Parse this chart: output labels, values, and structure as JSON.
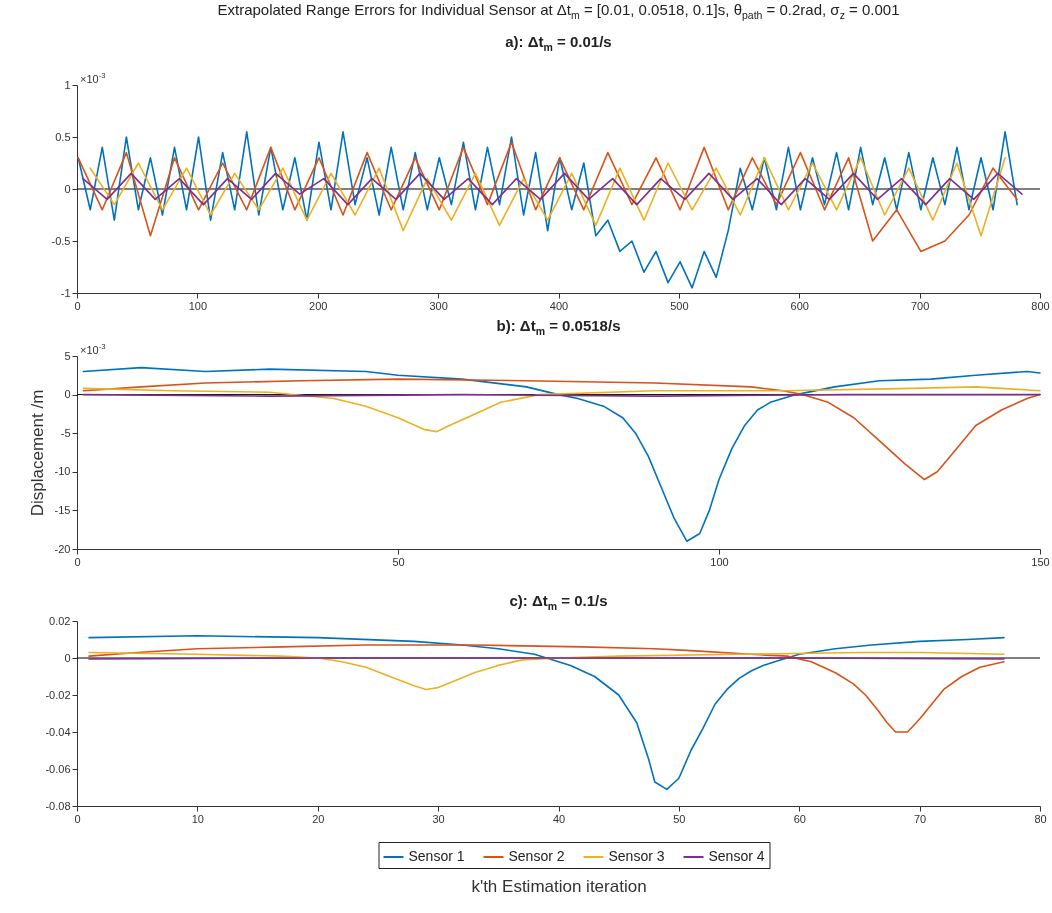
{
  "chart_data": [
    {
      "type": "line",
      "title": "Extrapolated Range Errors for Individual Sensor at Δt$_{m}$ = [0.01, 0.0518, 0.1]s, θ$_{path}$ = 0.2rad, σ$_{z}$ = 0.001",
      "subtitle": "a): Δt$_{m}$ = 0.01/s",
      "annotations": [
        "×10$^{-3}$"
      ],
      "xlim": [
        0,
        800
      ],
      "xticks": [
        0,
        100,
        200,
        300,
        400,
        500,
        600,
        700,
        800
      ],
      "ylim": [
        -1,
        1
      ],
      "yticks": [
        -1,
        -0.5,
        0,
        0.5,
        1
      ],
      "grid": false,
      "legend": false,
      "line_style": "solid",
      "ref_lines": [
        {
          "axis": "y",
          "value": 0,
          "color": "#000000"
        }
      ],
      "series": [
        {
          "color": "#0072bd",
          "x": [
            1,
            11,
            21,
            31,
            41,
            51,
            61,
            71,
            81,
            91,
            101,
            111,
            121,
            131,
            141,
            151,
            161,
            171,
            181,
            191,
            201,
            211,
            221,
            231,
            241,
            251,
            261,
            271,
            281,
            291,
            301,
            311,
            321,
            331,
            341,
            351,
            361,
            371,
            381,
            391,
            401,
            411,
            421,
            431,
            441,
            451,
            461,
            471,
            481,
            491,
            501,
            511,
            521,
            531,
            541,
            551,
            561,
            571,
            581,
            591,
            601,
            611,
            621,
            631,
            641,
            651,
            661,
            671,
            681,
            691,
            701,
            711,
            721,
            731,
            741,
            751,
            761,
            771,
            781
          ],
          "values": [
            0.3,
            -0.2,
            0.4,
            -0.3,
            0.5,
            -0.2,
            0.3,
            -0.25,
            0.4,
            -0.2,
            0.5,
            -0.3,
            0.35,
            -0.2,
            0.55,
            -0.25,
            0.4,
            -0.2,
            0.3,
            -0.3,
            0.45,
            -0.2,
            0.55,
            -0.15,
            0.3,
            -0.25,
            0.4,
            -0.2,
            0.35,
            -0.2,
            0.3,
            -0.15,
            0.45,
            -0.2,
            0.4,
            -0.15,
            0.5,
            -0.25,
            0.35,
            -0.4,
            0.3,
            -0.2,
            0.25,
            -0.45,
            -0.3,
            -0.6,
            -0.5,
            -0.8,
            -0.6,
            -0.9,
            -0.7,
            -0.95,
            -0.6,
            -0.85,
            -0.4,
            0.2,
            -0.2,
            0.3,
            -0.2,
            0.4,
            -0.2,
            0.3,
            -0.15,
            0.35,
            -0.2,
            0.4,
            -0.15,
            0.3,
            -0.2,
            0.35,
            -0.2,
            0.3,
            -0.15,
            0.4,
            -0.2,
            0.3,
            -0.2,
            0.55,
            -0.15
          ]
        },
        {
          "color": "#d95319",
          "x": [
            1,
            21,
            41,
            61,
            81,
            101,
            121,
            141,
            161,
            181,
            201,
            221,
            241,
            261,
            281,
            301,
            321,
            341,
            361,
            381,
            401,
            421,
            441,
            461,
            481,
            501,
            521,
            541,
            561,
            581,
            601,
            621,
            641,
            661,
            681,
            701,
            721,
            741,
            761,
            781
          ],
          "values": [
            0.3,
            -0.2,
            0.35,
            -0.45,
            0.3,
            -0.2,
            0.25,
            -0.2,
            0.4,
            -0.2,
            0.3,
            -0.25,
            0.35,
            -0.2,
            0.3,
            -0.2,
            0.4,
            -0.15,
            0.45,
            -0.2,
            0.3,
            -0.2,
            0.35,
            -0.15,
            0.3,
            -0.2,
            0.4,
            -0.2,
            0.3,
            -0.15,
            0.35,
            -0.2,
            0.3,
            -0.5,
            -0.2,
            -0.6,
            -0.5,
            -0.25,
            0.2,
            -0.1
          ]
        },
        {
          "color": "#edb120",
          "x": [
            11,
            31,
            51,
            71,
            91,
            111,
            131,
            151,
            171,
            191,
            211,
            231,
            251,
            271,
            291,
            311,
            331,
            351,
            371,
            391,
            411,
            431,
            451,
            471,
            491,
            511,
            531,
            551,
            571,
            591,
            611,
            631,
            651,
            671,
            691,
            711,
            731,
            751,
            771
          ],
          "values": [
            0.2,
            -0.15,
            0.25,
            -0.2,
            0.2,
            -0.25,
            0.15,
            -0.2,
            0.2,
            -0.3,
            0.15,
            -0.25,
            0.2,
            -0.4,
            0.1,
            -0.3,
            0.15,
            -0.35,
            0.1,
            -0.3,
            0.15,
            -0.35,
            0.2,
            -0.3,
            0.25,
            -0.2,
            0.2,
            -0.25,
            0.3,
            -0.2,
            0.25,
            -0.2,
            0.3,
            -0.25,
            0.2,
            -0.3,
            0.25,
            -0.45,
            0.3
          ]
        },
        {
          "color": "#7e2f8e",
          "x": [
            5,
            25,
            45,
            65,
            85,
            105,
            125,
            145,
            165,
            185,
            205,
            225,
            245,
            265,
            285,
            305,
            325,
            345,
            365,
            385,
            405,
            425,
            445,
            465,
            485,
            505,
            525,
            545,
            565,
            585,
            605,
            625,
            645,
            665,
            685,
            705,
            725,
            745,
            765,
            785
          ],
          "values": [
            0.1,
            -0.1,
            0.15,
            -0.1,
            0.1,
            -0.15,
            0.1,
            -0.1,
            0.15,
            -0.05,
            0.1,
            -0.15,
            0.1,
            -0.1,
            0.15,
            -0.1,
            0.1,
            -0.15,
            0.1,
            -0.1,
            0.15,
            -0.1,
            0.1,
            -0.15,
            0.1,
            -0.1,
            0.15,
            -0.1,
            0.1,
            -0.15,
            0.1,
            -0.1,
            0.15,
            -0.1,
            0.1,
            -0.15,
            0.1,
            -0.1,
            0.15,
            -0.05
          ]
        }
      ]
    },
    {
      "type": "line",
      "title": "b): Δt$_{m}$ = 0.0518/s",
      "ylabel": "Displacement /m",
      "annotations": [
        "×10$^{-3}$"
      ],
      "xlim": [
        0,
        150
      ],
      "xticks": [
        0,
        50,
        100,
        150
      ],
      "ylim": [
        -20,
        5
      ],
      "yticks": [
        -20,
        -15,
        -10,
        -5,
        0,
        5
      ],
      "grid": false,
      "legend": false,
      "line_style": "solid",
      "ref_lines": [
        {
          "axis": "y",
          "value": 0,
          "color": "#000000"
        }
      ],
      "series": [
        {
          "color": "#0072bd",
          "x": [
            1,
            10,
            20,
            30,
            45,
            50,
            60,
            70,
            75,
            78,
            82,
            85,
            87,
            89,
            91,
            93,
            95,
            97,
            98.5,
            100,
            102,
            104,
            106,
            108,
            112,
            118,
            125,
            133,
            140,
            148,
            150
          ],
          "values": [
            3,
            3.5,
            3,
            3.3,
            3,
            2.5,
            2,
            1,
            0,
            -0.5,
            -1.5,
            -3,
            -5,
            -8,
            -12,
            -16,
            -19,
            -18,
            -15,
            -11,
            -7,
            -4,
            -2,
            -1,
            0,
            1,
            1.8,
            2,
            2.5,
            3,
            2.8
          ]
        },
        {
          "color": "#d95319",
          "x": [
            1,
            10,
            20,
            35,
            50,
            70,
            90,
            105,
            110,
            113,
            117,
            121,
            125,
            129,
            132,
            134,
            137,
            140,
            144,
            148,
            150
          ],
          "values": [
            0.5,
            1,
            1.5,
            1.8,
            2,
            1.8,
            1.5,
            1,
            0.5,
            0,
            -1,
            -3,
            -6,
            -9,
            -11,
            -10,
            -7,
            -4,
            -2,
            -0.5,
            0
          ]
        },
        {
          "color": "#edb120",
          "x": [
            1,
            15,
            30,
            40,
            45,
            50,
            54,
            56,
            58,
            62,
            66,
            72,
            90,
            110,
            130,
            140,
            150
          ],
          "values": [
            0.8,
            0.5,
            0.3,
            -0.5,
            -1.5,
            -3,
            -4.5,
            -4.8,
            -4,
            -2.5,
            -1,
            0,
            0.5,
            0.5,
            0.8,
            1,
            0.5
          ]
        },
        {
          "color": "#7e2f8e",
          "x": [
            1,
            30,
            60,
            90,
            120,
            150
          ],
          "values": [
            0,
            -0.2,
            0,
            -0.2,
            0,
            0
          ]
        }
      ]
    },
    {
      "type": "line",
      "title": "c): Δt$_{m}$ = 0.1/s",
      "xlabel": "k'th Estimation iteration",
      "xlim": [
        0,
        80
      ],
      "xticks": [
        0,
        10,
        20,
        30,
        40,
        50,
        60,
        70,
        80
      ],
      "ylim": [
        -0.08,
        0.02
      ],
      "yticks": [
        -0.08,
        -0.06,
        -0.04,
        -0.02,
        0,
        0.02
      ],
      "grid": false,
      "legend": "bottom",
      "line_style": "solid",
      "ref_lines": [
        {
          "axis": "y",
          "value": 0,
          "color": "#000000"
        }
      ],
      "series": [
        {
          "name": "Sensor 1",
          "color": "#0072bd",
          "x": [
            1,
            10,
            20,
            28,
            32,
            35,
            38,
            39,
            41,
            43,
            45,
            46.5,
            47.5,
            48,
            49,
            50,
            51,
            52,
            53,
            54,
            55,
            56,
            57,
            58.5,
            60,
            63,
            66,
            70,
            74,
            77
          ],
          "values": [
            0.011,
            0.012,
            0.011,
            0.009,
            0.007,
            0.005,
            0.002,
            0,
            -0.004,
            -0.01,
            -0.02,
            -0.035,
            -0.055,
            -0.067,
            -0.071,
            -0.065,
            -0.05,
            -0.038,
            -0.025,
            -0.017,
            -0.011,
            -0.007,
            -0.004,
            -0.001,
            0.002,
            0.005,
            0.007,
            0.009,
            0.01,
            0.011
          ]
        },
        {
          "name": "Sensor 2",
          "color": "#d95319",
          "x": [
            1,
            5,
            10,
            17,
            24,
            33,
            42,
            48,
            51,
            56,
            59,
            61,
            63,
            64.5,
            65.5,
            66.5,
            67.3,
            68,
            69,
            70,
            71,
            72,
            73.5,
            75,
            77
          ],
          "values": [
            0.001,
            0.003,
            0.005,
            0.006,
            0.007,
            0.007,
            0.006,
            0.005,
            0.004,
            0.002,
            0.001,
            -0.002,
            -0.008,
            -0.014,
            -0.02,
            -0.028,
            -0.035,
            -0.04,
            -0.04,
            -0.033,
            -0.025,
            -0.017,
            -0.01,
            -0.005,
            -0.002
          ]
        },
        {
          "name": "Sensor 3",
          "color": "#edb120",
          "x": [
            1,
            10,
            17,
            20,
            22,
            24,
            26,
            28,
            29,
            30,
            31.5,
            33,
            35,
            37,
            40,
            45,
            55,
            65,
            70,
            77
          ],
          "values": [
            0.003,
            0.002,
            0.001,
            0,
            -0.002,
            -0.005,
            -0.01,
            -0.015,
            -0.017,
            -0.016,
            -0.012,
            -0.008,
            -0.004,
            -0.001,
            0,
            0.001,
            0.002,
            0.003,
            0.003,
            0.002
          ]
        },
        {
          "name": "Sensor 4",
          "color": "#7e2f8e",
          "x": [
            1,
            20,
            40,
            60,
            77
          ],
          "values": [
            -0.0005,
            0,
            0,
            0,
            -0.0005
          ]
        }
      ]
    }
  ]
}
